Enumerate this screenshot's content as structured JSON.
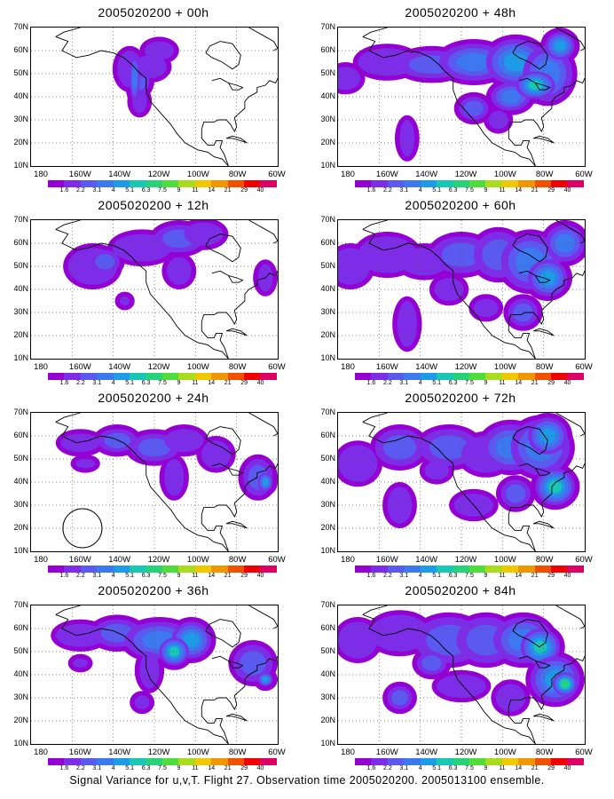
{
  "panels": [
    {
      "title": "2005020200 + 00h",
      "blobs": [
        [
          40,
          52,
          5,
          8,
          1
        ],
        [
          44,
          47,
          4,
          6,
          2
        ],
        [
          48,
          53,
          7,
          5,
          1
        ],
        [
          52,
          60,
          6,
          4,
          1
        ],
        [
          44,
          38,
          3,
          5,
          1
        ],
        [
          42,
          48,
          2,
          10,
          3
        ]
      ],
      "circle": false
    },
    {
      "title": "2005020200 + 48h",
      "blobs": [
        [
          3,
          48,
          6,
          5,
          1
        ],
        [
          20,
          55,
          12,
          6,
          1
        ],
        [
          38,
          54,
          14,
          6,
          2
        ],
        [
          55,
          55,
          14,
          8,
          3
        ],
        [
          72,
          55,
          12,
          10,
          4
        ],
        [
          85,
          50,
          10,
          12,
          3
        ],
        [
          70,
          40,
          8,
          6,
          3
        ],
        [
          80,
          45,
          8,
          6,
          5
        ],
        [
          28,
          22,
          3,
          8,
          1
        ],
        [
          55,
          35,
          6,
          5,
          2
        ],
        [
          90,
          62,
          6,
          6,
          4
        ],
        [
          65,
          30,
          4,
          4,
          1
        ]
      ],
      "circle": false
    },
    {
      "title": "2005020200 + 12h",
      "blobs": [
        [
          25,
          50,
          10,
          8,
          1
        ],
        [
          30,
          52,
          6,
          5,
          2
        ],
        [
          45,
          58,
          12,
          6,
          1
        ],
        [
          60,
          62,
          10,
          6,
          2
        ],
        [
          70,
          64,
          8,
          5,
          1
        ],
        [
          60,
          48,
          5,
          6,
          1
        ],
        [
          38,
          35,
          2,
          2,
          1
        ],
        [
          95,
          45,
          3,
          6,
          1
        ]
      ],
      "circle": false
    },
    {
      "title": "2005020200 + 60h",
      "blobs": [
        [
          5,
          50,
          8,
          8,
          1
        ],
        [
          20,
          55,
          12,
          8,
          1
        ],
        [
          35,
          52,
          10,
          6,
          1
        ],
        [
          50,
          55,
          12,
          8,
          2
        ],
        [
          65,
          55,
          10,
          10,
          2
        ],
        [
          78,
          52,
          12,
          12,
          3
        ],
        [
          85,
          45,
          8,
          8,
          4
        ],
        [
          92,
          60,
          8,
          8,
          3
        ],
        [
          28,
          25,
          4,
          10,
          1
        ],
        [
          45,
          40,
          6,
          5,
          1
        ],
        [
          60,
          32,
          5,
          4,
          1
        ],
        [
          75,
          30,
          6,
          6,
          2
        ]
      ],
      "circle": false
    },
    {
      "title": "2005020200 + 24h",
      "blobs": [
        [
          20,
          57,
          8,
          4,
          1
        ],
        [
          35,
          58,
          8,
          5,
          2
        ],
        [
          50,
          55,
          10,
          6,
          2
        ],
        [
          62,
          58,
          8,
          5,
          1
        ],
        [
          75,
          52,
          6,
          6,
          1
        ],
        [
          58,
          42,
          4,
          8,
          1
        ],
        [
          92,
          42,
          6,
          8,
          2
        ],
        [
          95,
          40,
          3,
          4,
          4
        ],
        [
          22,
          48,
          4,
          2,
          1
        ]
      ],
      "circle": true
    },
    {
      "title": "2005020200 + 72h",
      "blobs": [
        [
          8,
          48,
          8,
          8,
          1
        ],
        [
          25,
          55,
          10,
          8,
          2
        ],
        [
          45,
          55,
          12,
          8,
          2
        ],
        [
          60,
          52,
          10,
          8,
          1
        ],
        [
          70,
          55,
          12,
          10,
          3
        ],
        [
          82,
          55,
          12,
          12,
          3
        ],
        [
          88,
          38,
          8,
          8,
          5
        ],
        [
          85,
          60,
          8,
          8,
          4
        ],
        [
          25,
          30,
          5,
          8,
          1
        ],
        [
          55,
          30,
          8,
          5,
          1
        ],
        [
          72,
          35,
          6,
          6,
          2
        ],
        [
          40,
          45,
          5,
          4,
          1
        ]
      ],
      "circle": false
    },
    {
      "title": "2005020200 + 36h",
      "blobs": [
        [
          20,
          57,
          10,
          5,
          1
        ],
        [
          35,
          58,
          10,
          6,
          2
        ],
        [
          52,
          55,
          14,
          8,
          3
        ],
        [
          65,
          55,
          8,
          8,
          4
        ],
        [
          58,
          50,
          6,
          6,
          5
        ],
        [
          48,
          42,
          4,
          8,
          1
        ],
        [
          90,
          45,
          8,
          8,
          2
        ],
        [
          95,
          38,
          3,
          3,
          4
        ],
        [
          20,
          45,
          3,
          2,
          1
        ],
        [
          45,
          28,
          3,
          3,
          1
        ]
      ],
      "circle": false
    },
    {
      "title": "2005020200 + 84h",
      "blobs": [
        [
          8,
          55,
          8,
          8,
          1
        ],
        [
          25,
          58,
          12,
          8,
          1
        ],
        [
          45,
          55,
          14,
          10,
          2
        ],
        [
          60,
          55,
          12,
          10,
          2
        ],
        [
          75,
          55,
          12,
          10,
          3
        ],
        [
          82,
          52,
          8,
          8,
          5
        ],
        [
          88,
          38,
          10,
          10,
          4
        ],
        [
          92,
          36,
          5,
          5,
          6
        ],
        [
          25,
          30,
          5,
          5,
          2
        ],
        [
          50,
          35,
          10,
          5,
          1
        ],
        [
          70,
          30,
          6,
          6,
          1
        ],
        [
          38,
          45,
          6,
          5,
          2
        ]
      ],
      "circle": false
    }
  ],
  "y_labels": [
    "70N",
    "60N",
    "50N",
    "40N",
    "30N",
    "20N",
    "10N"
  ],
  "x_labels": [
    "180",
    "160W",
    "140W",
    "120W",
    "100W",
    "80W",
    "60W"
  ],
  "legend_labels": [
    "1.6",
    "2.2",
    "3.1",
    "4",
    "5.1",
    "6.3",
    "7.5",
    "9",
    "11",
    "14",
    "21",
    "29",
    "40"
  ],
  "legend_colors": [
    "#9400d3",
    "#7d2ce8",
    "#5a5af0",
    "#3c78f0",
    "#1e9be6",
    "#19c8b4",
    "#28d278",
    "#50dc3c",
    "#aadc1e",
    "#f0c800",
    "#f09600",
    "#f05000",
    "#f00000",
    "#dc0064"
  ],
  "footer": "Signal Variance for u,v,T. Flight 27. Observation time 2005020200. 2005013100 ensemble."
}
